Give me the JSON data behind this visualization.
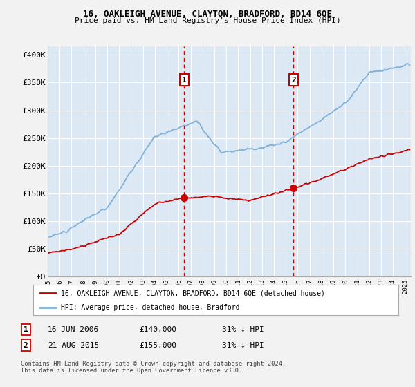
{
  "title": "16, OAKLEIGH AVENUE, CLAYTON, BRADFORD, BD14 6QE",
  "subtitle": "Price paid vs. HM Land Registry's House Price Index (HPI)",
  "ylabel_ticks": [
    "£0",
    "£50K",
    "£100K",
    "£150K",
    "£200K",
    "£250K",
    "£300K",
    "£350K",
    "£400K"
  ],
  "ytick_values": [
    0,
    50000,
    100000,
    150000,
    200000,
    250000,
    300000,
    350000,
    400000
  ],
  "ylim": [
    0,
    415000
  ],
  "xlim_start": 1995.0,
  "xlim_end": 2025.5,
  "sale1_date": 2006.46,
  "sale1_price": 140000,
  "sale1_label": "1",
  "sale2_date": 2015.64,
  "sale2_price": 155000,
  "sale2_label": "2",
  "red_line_color": "#cc0000",
  "blue_line_color": "#7fb0d8",
  "dashed_line_color": "#cc0000",
  "fig_bg_color": "#f2f2f2",
  "plot_bg_color": "#dce9f5",
  "grid_color": "#ffffff",
  "legend_entry1": "16, OAKLEIGH AVENUE, CLAYTON, BRADFORD, BD14 6QE (detached house)",
  "legend_entry2": "HPI: Average price, detached house, Bradford",
  "table_row1": [
    "1",
    "16-JUN-2006",
    "£140,000",
    "31% ↓ HPI"
  ],
  "table_row2": [
    "2",
    "21-AUG-2015",
    "£155,000",
    "31% ↓ HPI"
  ],
  "footnote": "Contains HM Land Registry data © Crown copyright and database right 2024.\nThis data is licensed under the Open Government Licence v3.0.",
  "xtick_years": [
    1995,
    1996,
    1997,
    1998,
    1999,
    2000,
    2001,
    2002,
    2003,
    2004,
    2005,
    2006,
    2007,
    2008,
    2009,
    2010,
    2011,
    2012,
    2013,
    2014,
    2015,
    2016,
    2017,
    2018,
    2019,
    2020,
    2021,
    2022,
    2023,
    2024,
    2025
  ]
}
